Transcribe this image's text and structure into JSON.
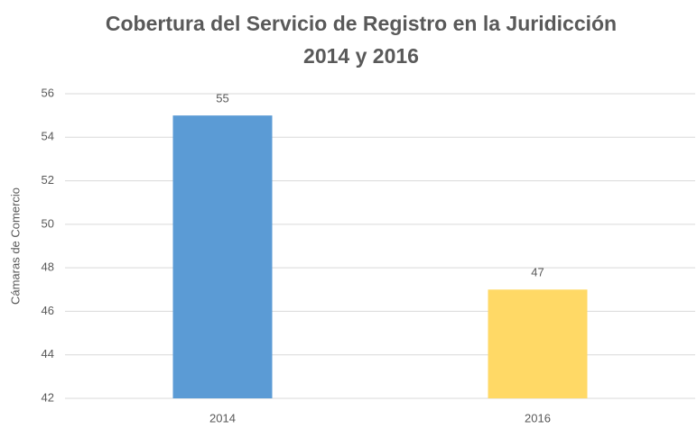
{
  "chart_data": {
    "type": "bar",
    "title": [
      "Cobertura del Servicio de Registro en la Juridicción",
      "2014  y  2016"
    ],
    "y_label": "Cámaras de Comercio",
    "categories": [
      "2014",
      "2016"
    ],
    "values": [
      55,
      47
    ],
    "colors": [
      "#5b9bd5",
      "#ffd966"
    ],
    "ylim": [
      42,
      56
    ],
    "yticks": [
      42,
      44,
      46,
      48,
      50,
      52,
      54,
      56
    ],
    "grid": true
  }
}
